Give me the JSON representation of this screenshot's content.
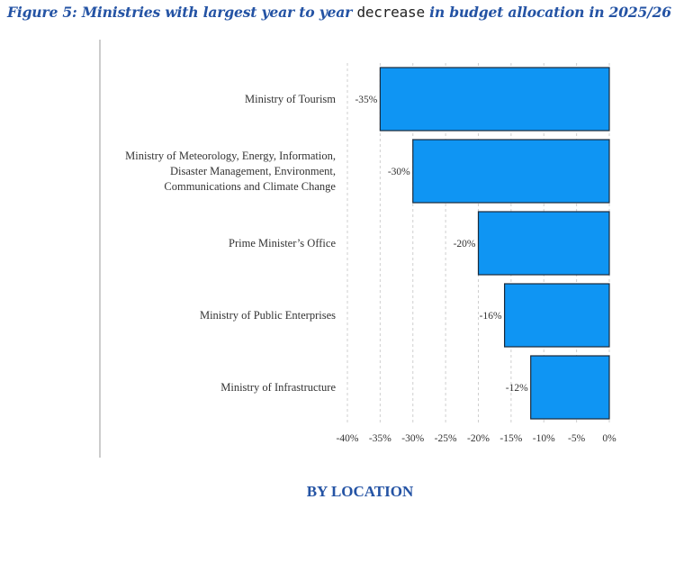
{
  "title": {
    "before": "Figure 5: Ministries with largest year to year ",
    "emph": "decrease",
    "after": " in budget allocation in 2025/26"
  },
  "subtitle": "BY LOCATION",
  "colors": {
    "bar_fill": "#0f95f3",
    "bar_stroke": "#1b2a3a",
    "title": "#2453a4",
    "grid": "#cfcfcf",
    "text": "#333333"
  },
  "chart_data": {
    "type": "bar",
    "orientation": "horizontal",
    "categories": [
      [
        "Ministry of Tourism"
      ],
      [
        "Ministry of Meteorology, Energy, Information,",
        "Disaster Management, Environment,",
        "Communications and Climate Change"
      ],
      [
        "Prime Minister’s Office"
      ],
      [
        "Ministry of Public Enterprises"
      ],
      [
        "Ministry of Infrastructure"
      ]
    ],
    "values": [
      -35,
      -30,
      -20,
      -16,
      -12
    ],
    "data_labels": [
      "-35%",
      "-30%",
      "-20%",
      "-16%",
      "-12%"
    ],
    "x_ticks": [
      -40,
      -35,
      -30,
      -25,
      -20,
      -15,
      -10,
      -5,
      0
    ],
    "x_tick_labels": [
      "-40%",
      "-35%",
      "-30%",
      "-25%",
      "-20%",
      "-15%",
      "-10%",
      "-5%",
      "0%"
    ],
    "xlim": [
      -40,
      0
    ],
    "grid": "vertical dashed",
    "legend": "none"
  }
}
